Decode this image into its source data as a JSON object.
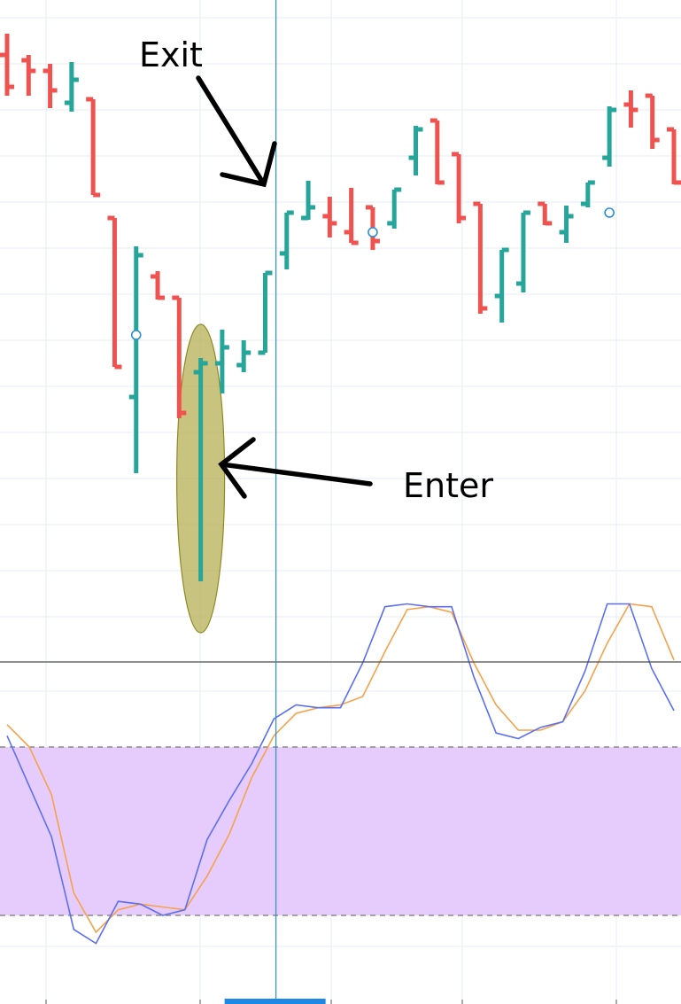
{
  "colors": {
    "bull": "#26a69a",
    "bear": "#ef5350",
    "grid": "#e4eef5",
    "crosshair": "#2a8fd6",
    "line_k": "#5b6ff0",
    "line_d": "#f5a24b",
    "band_fill": "#e6ccfd",
    "highlight_fill": "#b3ad4d",
    "marker": "#2a8fd6",
    "timescale": "#1e88e5"
  },
  "annotations": {
    "exit_label": "Exit",
    "enter_label": "Enter"
  },
  "chart_data": [
    {
      "type": "ohlc",
      "title": "",
      "grid": true,
      "ylim": [
        0,
        365
      ],
      "bars": [
        {
          "o": 334,
          "h": 346,
          "l": 311,
          "c": 316,
          "dir": "bear"
        },
        {
          "o": 331,
          "h": 334,
          "l": 311,
          "c": 325,
          "dir": "bear"
        },
        {
          "o": 325,
          "h": 329,
          "l": 304,
          "c": 314,
          "dir": "bear"
        },
        {
          "o": 307,
          "h": 330,
          "l": 302,
          "c": 320,
          "dir": "bull"
        },
        {
          "o": 309,
          "h": 309,
          "l": 255,
          "c": 255,
          "dir": "bear"
        },
        {
          "o": 242,
          "h": 242,
          "l": 158,
          "c": 158,
          "dir": "bear"
        },
        {
          "o": 141,
          "h": 226,
          "l": 98,
          "c": 221,
          "dir": "bull"
        },
        {
          "o": 209,
          "h": 212,
          "l": 196,
          "c": 197,
          "dir": "bear"
        },
        {
          "o": 197,
          "h": 197,
          "l": 129,
          "c": 132,
          "dir": "bear"
        },
        {
          "o": 155,
          "h": 163,
          "l": 37,
          "c": 160,
          "dir": "bull"
        },
        {
          "o": 160,
          "h": 179,
          "l": 143,
          "c": 169,
          "dir": "bull"
        },
        {
          "o": 159,
          "h": 173,
          "l": 155,
          "c": 166,
          "dir": "bull"
        },
        {
          "o": 166,
          "h": 211,
          "l": 166,
          "c": 211,
          "dir": "bull"
        },
        {
          "o": 222,
          "h": 245,
          "l": 213,
          "c": 245,
          "dir": "bull"
        },
        {
          "o": 242,
          "h": 263,
          "l": 241,
          "c": 248,
          "dir": "bull"
        },
        {
          "o": 243,
          "h": 254,
          "l": 231,
          "c": 239,
          "dir": "bear"
        },
        {
          "o": 234,
          "h": 259,
          "l": 228,
          "c": 228,
          "dir": "bear"
        },
        {
          "o": 248,
          "h": 248,
          "l": 224,
          "c": 229,
          "dir": "bear"
        },
        {
          "o": 239,
          "h": 258,
          "l": 236,
          "c": 258,
          "dir": "bull"
        },
        {
          "o": 276,
          "h": 294,
          "l": 266,
          "c": 292,
          "dir": "bull"
        },
        {
          "o": 297,
          "h": 297,
          "l": 261,
          "c": 262,
          "dir": "bear"
        },
        {
          "o": 278,
          "h": 278,
          "l": 239,
          "c": 242,
          "dir": "bear"
        },
        {
          "o": 250,
          "h": 250,
          "l": 188,
          "c": 191,
          "dir": "bear"
        },
        {
          "o": 198,
          "h": 224,
          "l": 183,
          "c": 224,
          "dir": "bull"
        },
        {
          "o": 205,
          "h": 245,
          "l": 200,
          "c": 245,
          "dir": "bull"
        },
        {
          "o": 250,
          "h": 250,
          "l": 238,
          "c": 239,
          "dir": "bear"
        },
        {
          "o": 234,
          "h": 249,
          "l": 228,
          "c": 243,
          "dir": "bull"
        },
        {
          "o": 250,
          "h": 262,
          "l": 248,
          "c": 262,
          "dir": "bull"
        },
        {
          "o": 276,
          "h": 305,
          "l": 271,
          "c": 303,
          "dir": "bull"
        },
        {
          "o": 306,
          "h": 314,
          "l": 293,
          "c": 303,
          "dir": "bear"
        },
        {
          "o": 311,
          "h": 311,
          "l": 281,
          "c": 286,
          "dir": "bear"
        },
        {
          "o": 292,
          "h": 292,
          "l": 261,
          "c": 262,
          "dir": "bear"
        }
      ],
      "markers": [
        {
          "bar": 6,
          "value": 176
        },
        {
          "bar": 17,
          "value": 234
        },
        {
          "bar": 28,
          "value": 245
        }
      ]
    },
    {
      "type": "line",
      "title": "",
      "grid": true,
      "ylim": [
        -10,
        110
      ],
      "band": [
        20,
        80
      ],
      "series_k": [
        84,
        66,
        48,
        15,
        10,
        25,
        24,
        20,
        22,
        47,
        61,
        74,
        90,
        95,
        94,
        94,
        110,
        130,
        131,
        130,
        130,
        105,
        85,
        83,
        87,
        89,
        107,
        131,
        131,
        108,
        93
      ],
      "series_d": [
        88,
        80,
        63,
        28,
        14,
        22,
        24,
        23,
        22,
        34,
        49,
        69,
        84,
        92,
        94,
        95,
        98,
        114,
        129,
        130,
        128,
        110,
        95,
        86,
        86,
        89,
        100,
        117,
        131,
        130,
        111
      ]
    }
  ]
}
